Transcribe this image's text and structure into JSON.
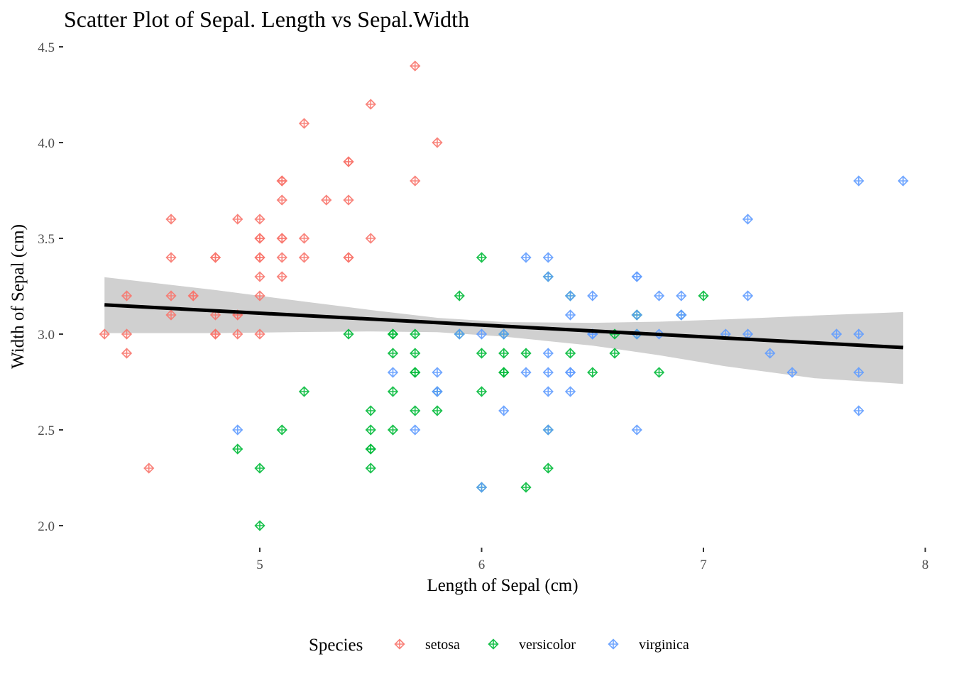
{
  "chart_data": {
    "type": "scatter",
    "title": "Scatter Plot of Sepal. Length vs Sepal.Width",
    "xlabel": "Length of Sepal (cm)",
    "ylabel": "Width of Sepal (cm)",
    "xlim": [
      4.3,
      7.9
    ],
    "ylim": [
      2.0,
      4.4
    ],
    "x_ticks": [
      "5",
      "6",
      "7",
      "8"
    ],
    "y_ticks": [
      "2.0",
      "2.5",
      "3.0",
      "3.5",
      "4.0",
      "4.5"
    ],
    "grid": false,
    "legend": {
      "title": "Species",
      "position": "bottom"
    },
    "marker": "diamond-plus",
    "series": [
      {
        "name": "setosa",
        "color": "#F8766D",
        "points": [
          [
            5.1,
            3.5
          ],
          [
            4.9,
            3.0
          ],
          [
            4.7,
            3.2
          ],
          [
            4.6,
            3.1
          ],
          [
            5.0,
            3.6
          ],
          [
            5.4,
            3.9
          ],
          [
            4.6,
            3.4
          ],
          [
            5.0,
            3.4
          ],
          [
            4.4,
            2.9
          ],
          [
            4.9,
            3.1
          ],
          [
            5.4,
            3.7
          ],
          [
            4.8,
            3.4
          ],
          [
            4.8,
            3.0
          ],
          [
            4.3,
            3.0
          ],
          [
            5.8,
            4.0
          ],
          [
            5.7,
            4.4
          ],
          [
            5.4,
            3.9
          ],
          [
            5.1,
            3.5
          ],
          [
            5.7,
            3.8
          ],
          [
            5.1,
            3.8
          ],
          [
            5.4,
            3.4
          ],
          [
            5.1,
            3.7
          ],
          [
            4.6,
            3.6
          ],
          [
            5.1,
            3.3
          ],
          [
            4.8,
            3.4
          ],
          [
            5.0,
            3.0
          ],
          [
            5.0,
            3.4
          ],
          [
            5.2,
            3.5
          ],
          [
            5.2,
            3.4
          ],
          [
            4.7,
            3.2
          ],
          [
            4.8,
            3.1
          ],
          [
            5.4,
            3.4
          ],
          [
            5.2,
            4.1
          ],
          [
            5.5,
            4.2
          ],
          [
            4.9,
            3.1
          ],
          [
            5.0,
            3.2
          ],
          [
            5.5,
            3.5
          ],
          [
            4.9,
            3.6
          ],
          [
            4.4,
            3.0
          ],
          [
            5.1,
            3.4
          ],
          [
            5.0,
            3.5
          ],
          [
            4.5,
            2.3
          ],
          [
            4.4,
            3.2
          ],
          [
            5.0,
            3.5
          ],
          [
            5.1,
            3.8
          ],
          [
            4.8,
            3.0
          ],
          [
            5.1,
            3.8
          ],
          [
            4.6,
            3.2
          ],
          [
            5.3,
            3.7
          ],
          [
            5.0,
            3.3
          ]
        ]
      },
      {
        "name": "versicolor",
        "color": "#00BA38",
        "points": [
          [
            7.0,
            3.2
          ],
          [
            6.4,
            3.2
          ],
          [
            6.9,
            3.1
          ],
          [
            5.5,
            2.3
          ],
          [
            6.5,
            2.8
          ],
          [
            5.7,
            2.8
          ],
          [
            6.3,
            3.3
          ],
          [
            4.9,
            2.4
          ],
          [
            6.6,
            2.9
          ],
          [
            5.2,
            2.7
          ],
          [
            5.0,
            2.0
          ],
          [
            5.9,
            3.0
          ],
          [
            6.0,
            2.2
          ],
          [
            6.1,
            2.9
          ],
          [
            5.6,
            2.9
          ],
          [
            6.7,
            3.1
          ],
          [
            5.6,
            3.0
          ],
          [
            5.8,
            2.7
          ],
          [
            6.2,
            2.2
          ],
          [
            5.6,
            2.5
          ],
          [
            5.9,
            3.2
          ],
          [
            6.1,
            2.8
          ],
          [
            6.3,
            2.5
          ],
          [
            6.1,
            2.8
          ],
          [
            6.4,
            2.9
          ],
          [
            6.6,
            3.0
          ],
          [
            6.8,
            2.8
          ],
          [
            6.7,
            3.0
          ],
          [
            6.0,
            2.9
          ],
          [
            5.7,
            2.6
          ],
          [
            5.5,
            2.4
          ],
          [
            5.5,
            2.4
          ],
          [
            5.8,
            2.7
          ],
          [
            6.0,
            2.7
          ],
          [
            5.4,
            3.0
          ],
          [
            6.0,
            3.4
          ],
          [
            6.7,
            3.1
          ],
          [
            6.3,
            2.3
          ],
          [
            5.6,
            3.0
          ],
          [
            5.5,
            2.5
          ],
          [
            5.5,
            2.6
          ],
          [
            6.1,
            3.0
          ],
          [
            5.8,
            2.6
          ],
          [
            5.0,
            2.3
          ],
          [
            5.6,
            2.7
          ],
          [
            5.7,
            3.0
          ],
          [
            5.7,
            2.9
          ],
          [
            6.2,
            2.9
          ],
          [
            5.1,
            2.5
          ],
          [
            5.7,
            2.8
          ]
        ]
      },
      {
        "name": "virginica",
        "color": "#619CFF",
        "points": [
          [
            6.3,
            3.3
          ],
          [
            5.8,
            2.7
          ],
          [
            7.1,
            3.0
          ],
          [
            6.3,
            2.9
          ],
          [
            6.5,
            3.0
          ],
          [
            7.6,
            3.0
          ],
          [
            4.9,
            2.5
          ],
          [
            7.3,
            2.9
          ],
          [
            6.7,
            2.5
          ],
          [
            7.2,
            3.6
          ],
          [
            6.5,
            3.2
          ],
          [
            6.4,
            2.7
          ],
          [
            6.8,
            3.0
          ],
          [
            5.7,
            2.5
          ],
          [
            5.8,
            2.8
          ],
          [
            6.4,
            3.2
          ],
          [
            6.5,
            3.0
          ],
          [
            7.7,
            3.8
          ],
          [
            7.7,
            2.6
          ],
          [
            6.0,
            2.2
          ],
          [
            6.9,
            3.2
          ],
          [
            5.6,
            2.8
          ],
          [
            7.7,
            2.8
          ],
          [
            6.3,
            2.7
          ],
          [
            6.7,
            3.3
          ],
          [
            7.2,
            3.2
          ],
          [
            6.2,
            2.8
          ],
          [
            6.1,
            3.0
          ],
          [
            6.4,
            2.8
          ],
          [
            7.2,
            3.0
          ],
          [
            7.4,
            2.8
          ],
          [
            7.9,
            3.8
          ],
          [
            6.4,
            2.8
          ],
          [
            6.3,
            2.8
          ],
          [
            6.1,
            2.6
          ],
          [
            7.7,
            3.0
          ],
          [
            6.3,
            3.4
          ],
          [
            6.4,
            3.1
          ],
          [
            6.0,
            3.0
          ],
          [
            6.9,
            3.1
          ],
          [
            6.7,
            3.1
          ],
          [
            6.9,
            3.1
          ],
          [
            5.8,
            2.7
          ],
          [
            6.8,
            3.2
          ],
          [
            6.7,
            3.3
          ],
          [
            6.7,
            3.0
          ],
          [
            6.3,
            2.5
          ],
          [
            6.5,
            3.0
          ],
          [
            6.2,
            3.4
          ],
          [
            5.9,
            3.0
          ]
        ]
      }
    ],
    "trendline": {
      "type": "linear",
      "intercept": 3.4189,
      "slope": -0.0619,
      "color": "#000000",
      "ci_band_color": "#C8C8C8",
      "ci_band": [
        [
          4.3,
          3.005,
          3.297
        ],
        [
          4.8,
          3.005,
          3.23
        ],
        [
          5.2,
          3.011,
          3.17
        ],
        [
          5.5,
          3.014,
          3.126
        ],
        [
          5.8,
          3.01,
          3.085
        ],
        [
          6.1,
          2.987,
          3.063
        ],
        [
          6.5,
          2.94,
          3.059
        ],
        [
          6.8,
          2.89,
          3.065
        ],
        [
          7.1,
          2.832,
          3.077
        ],
        [
          7.5,
          2.77,
          3.097
        ],
        [
          7.9,
          2.74,
          3.115
        ]
      ]
    }
  }
}
